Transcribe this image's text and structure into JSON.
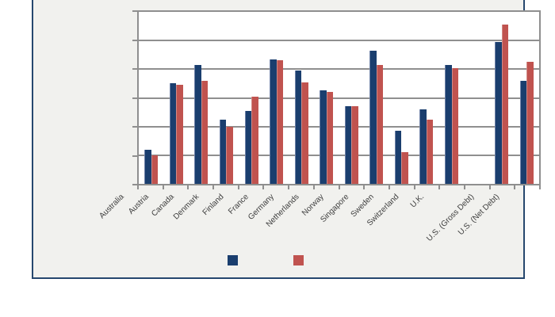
{
  "window": {
    "background": "#ffffff"
  },
  "frame": {
    "background": "#f1f1ee",
    "border_color": "#26476e"
  },
  "legend": {
    "entries": [
      {
        "label": "",
        "series": "series1"
      },
      {
        "label": "",
        "series": "series2"
      }
    ]
  },
  "chart_data": {
    "type": "bar",
    "title": "",
    "xlabel": "",
    "ylabel": "",
    "categories": [
      "Australia",
      "Austria",
      "Canada",
      "Denmark",
      "Finland",
      "France",
      "Germany",
      "Netherlands",
      "Norway",
      "Singapore",
      "Sweden",
      "Switzerland",
      "U.K.",
      "",
      "U.S. (Gross Debt)",
      "U.S. (Net Debt)"
    ],
    "series": [
      {
        "name": "",
        "color": "#1a3e6e",
        "edge_highlight": "#6f82a8",
        "values": [
          24,
          70,
          83,
          45,
          51,
          87,
          79,
          65,
          54,
          93,
          37,
          52,
          83,
          null,
          99,
          72
        ]
      },
      {
        "name": "",
        "color": "#c0534f",
        "edge_highlight": "#d18985",
        "values": [
          20,
          69,
          72,
          40,
          61,
          86,
          71,
          64,
          54,
          83,
          22,
          45,
          81,
          null,
          111,
          85
        ]
      }
    ],
    "ylim": [
      0,
      120
    ],
    "y_tick_step": 20,
    "y_tick_labels_visible": false,
    "x_label_rotation_deg": -45,
    "grid": "horizontal",
    "gridline_color": "#8f8f8f",
    "axis_color": "#8f8f8f",
    "plot_background": "#ffffff",
    "legend_position": "bottom",
    "legend_labels_visible": false
  }
}
